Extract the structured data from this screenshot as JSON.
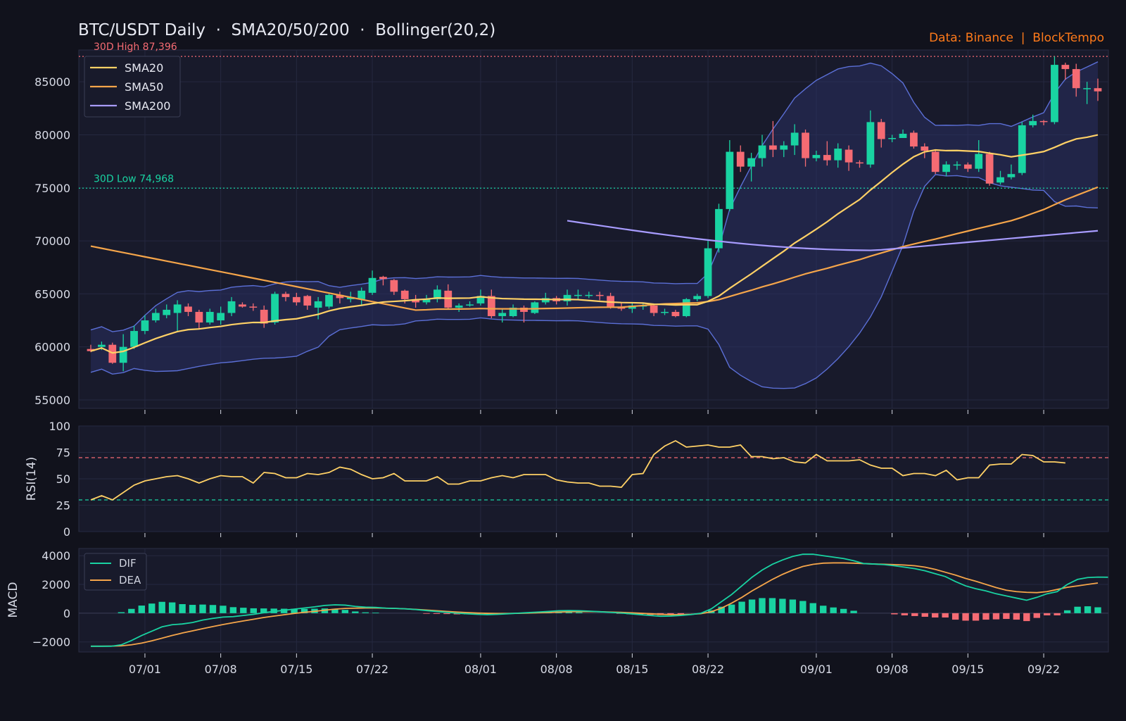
{
  "header": {
    "title": "BTC/USDT Daily  ·  SMA20/50/200  ·  Bollinger(20,2)",
    "source": "Data: Binance  |  BlockTempo"
  },
  "colors": {
    "background": "#11121c",
    "panel": "#181a2b",
    "up": "#19d3a2",
    "down": "#f56b73",
    "sma20": "#ffd166",
    "sma50": "#f5a54a",
    "sma200": "#a89cff",
    "bollinger": "#5b6fd6",
    "dif": "#19d3a2",
    "dea": "#f5a54a"
  },
  "chart_data": [
    {
      "type": "candlestick",
      "xaxis": {
        "ticks": [
          "07/01",
          "07/08",
          "07/15",
          "07/22",
          "08/01",
          "08/08",
          "08/15",
          "08/22",
          "09/01",
          "09/08",
          "09/15",
          "09/22"
        ]
      },
      "yaxis": {
        "ticks": [
          55000,
          60000,
          65000,
          70000,
          75000,
          80000,
          85000
        ],
        "ylim": [
          54200,
          88000
        ]
      },
      "legend": {
        "position": "top-left",
        "items": [
          "SMA20",
          "SMA50",
          "SMA200"
        ]
      },
      "annotations": [
        {
          "label": "30D High 87,396",
          "value": 87396,
          "color": "#f56b73"
        },
        {
          "label": "30D Low 74,968",
          "value": 74968,
          "color": "#19d3a2"
        }
      ],
      "ohlc_keypoints": [
        [
          59800,
          59600,
          60200,
          59500
        ],
        [
          60000,
          60200,
          60500,
          59700
        ],
        [
          60200,
          58500,
          60400,
          58400
        ],
        [
          58500,
          60000,
          61200,
          57700
        ],
        [
          60000,
          61500,
          62000,
          59800
        ],
        [
          61500,
          62500,
          63000,
          61200
        ],
        [
          62500,
          63200,
          63600,
          62300
        ],
        [
          63000,
          63500,
          64000,
          62700
        ],
        [
          63200,
          64000,
          64400,
          61400
        ],
        [
          63800,
          63300,
          64100,
          62900
        ],
        [
          63300,
          62300,
          63500,
          61700
        ],
        [
          62300,
          63300,
          63600,
          62100
        ],
        [
          62500,
          63200,
          63800,
          62100
        ],
        [
          63200,
          64300,
          64700,
          62900
        ],
        [
          64000,
          63800,
          64200,
          63700
        ],
        [
          63800,
          63700,
          64100,
          63400
        ],
        [
          63500,
          62200,
          63900,
          61800
        ],
        [
          62300,
          65000,
          65200,
          62100
        ],
        [
          65000,
          64700,
          65200,
          64300
        ],
        [
          64700,
          64200,
          65100,
          63900
        ],
        [
          64800,
          63900,
          64900,
          63500
        ],
        [
          63700,
          64300,
          64700,
          62600
        ],
        [
          63800,
          64900,
          65100,
          63600
        ],
        [
          64900,
          64600,
          65200,
          64100
        ],
        [
          64500,
          64700,
          65200,
          64200
        ],
        [
          64500,
          65300,
          65600,
          63900
        ],
        [
          65100,
          66500,
          67200,
          64900
        ],
        [
          66600,
          66400,
          66700,
          65800
        ],
        [
          66300,
          65200,
          66400,
          64900
        ],
        [
          65300,
          64500,
          65400,
          64100
        ],
        [
          64500,
          64200,
          64900,
          63700
        ],
        [
          64200,
          64500,
          64900,
          64000
        ],
        [
          64500,
          65400,
          65800,
          64200
        ],
        [
          65300,
          63700,
          65900,
          63500
        ],
        [
          63700,
          63900,
          64100,
          63300
        ],
        [
          64000,
          64000,
          64300,
          63800
        ],
        [
          64100,
          64800,
          65400,
          63900
        ],
        [
          64800,
          62900,
          65400,
          62700
        ],
        [
          62900,
          63200,
          63600,
          62300
        ],
        [
          62900,
          63700,
          64000,
          62800
        ],
        [
          63700,
          63300,
          63900,
          62300
        ],
        [
          63200,
          64200,
          64300,
          63100
        ],
        [
          64200,
          64600,
          65100,
          64000
        ],
        [
          64600,
          64300,
          64800,
          64000
        ],
        [
          64300,
          64900,
          65400,
          63900
        ],
        [
          64900,
          64900,
          65400,
          64500
        ],
        [
          64900,
          64900,
          65200,
          64600
        ],
        [
          64900,
          64800,
          65200,
          64400
        ],
        [
          64800,
          63800,
          65100,
          63600
        ],
        [
          63800,
          63600,
          64200,
          63400
        ],
        [
          63600,
          63900,
          64200,
          63200
        ],
        [
          63900,
          63900,
          64100,
          63500
        ],
        [
          63900,
          63200,
          64100,
          62900
        ],
        [
          63200,
          63300,
          63600,
          63000
        ],
        [
          63300,
          62900,
          63500,
          62800
        ],
        [
          62900,
          64500,
          64600,
          62800
        ],
        [
          64500,
          64800,
          65000,
          64300
        ],
        [
          64800,
          69300,
          70000,
          64600
        ],
        [
          69300,
          73000,
          73500,
          68900
        ],
        [
          73000,
          78400,
          79500,
          72800
        ],
        [
          78400,
          77000,
          79000,
          76500
        ],
        [
          77000,
          77800,
          78300,
          75600
        ],
        [
          77800,
          79000,
          80000,
          77000
        ],
        [
          79000,
          78600,
          81300,
          77900
        ],
        [
          78600,
          79000,
          79400,
          77900
        ],
        [
          79000,
          80200,
          81000,
          78100
        ],
        [
          80200,
          77800,
          80500,
          77000
        ],
        [
          77800,
          78100,
          78500,
          77500
        ],
        [
          78100,
          77600,
          79400,
          77100
        ],
        [
          77600,
          78700,
          79200,
          76900
        ],
        [
          78600,
          77400,
          79000,
          76600
        ],
        [
          77400,
          77300,
          77600,
          76900
        ],
        [
          77200,
          81200,
          82300,
          76900
        ],
        [
          81200,
          79600,
          81500,
          78800
        ],
        [
          79600,
          79700,
          80000,
          79300
        ],
        [
          79700,
          80100,
          80500,
          79700
        ],
        [
          80200,
          78900,
          80400,
          78700
        ],
        [
          78900,
          78500,
          79200,
          77800
        ],
        [
          78400,
          76500,
          78600,
          76300
        ],
        [
          76500,
          77200,
          77500,
          76100
        ],
        [
          77200,
          77200,
          77500,
          76700
        ],
        [
          77200,
          76800,
          77400,
          76500
        ],
        [
          76800,
          78200,
          79500,
          76500
        ],
        [
          78200,
          75400,
          78400,
          75200
        ],
        [
          75500,
          76000,
          76600,
          75300
        ],
        [
          76000,
          76300,
          77200,
          75800
        ],
        [
          76400,
          80900,
          81200,
          76200
        ],
        [
          80900,
          81300,
          81900,
          80700
        ],
        [
          81300,
          81200,
          81400,
          80900
        ],
        [
          81200,
          86600,
          87396,
          81000
        ],
        [
          86600,
          86200,
          86800,
          85200
        ],
        [
          86200,
          84400,
          86700,
          83600
        ],
        [
          84400,
          84400,
          85000,
          82900
        ],
        [
          84400,
          84100,
          85300,
          83200
        ]
      ],
      "sma200_range": {
        "from": 69200,
        "to": 71000
      }
    },
    {
      "type": "line",
      "ylabel": "RSI(14)",
      "yaxis": {
        "ticks": [
          0,
          25,
          50,
          75,
          100
        ],
        "ylim": [
          0,
          100
        ]
      },
      "thresholds": [
        70,
        30
      ],
      "rsi": [
        30,
        34,
        30,
        37,
        44,
        48,
        50,
        52,
        53,
        50,
        46,
        50,
        53,
        52,
        52,
        46,
        56,
        55,
        51,
        51,
        55,
        54,
        56,
        61,
        59,
        54,
        50,
        51,
        55,
        48,
        48,
        48,
        52,
        45,
        45,
        48,
        48,
        51,
        53,
        51,
        54,
        54,
        54,
        49,
        47,
        46,
        46,
        43,
        43,
        42,
        54,
        55,
        73,
        81,
        86,
        80,
        81,
        82,
        80,
        80,
        82,
        71,
        71,
        69,
        70,
        66,
        65,
        73,
        67,
        67,
        67,
        68,
        63,
        60,
        60,
        53,
        55,
        55,
        53,
        58,
        49,
        51,
        51,
        63,
        64,
        64,
        73,
        72,
        66,
        66,
        65
      ]
    },
    {
      "type": "bar+line",
      "ylabel": "MACD",
      "yaxis": {
        "ticks": [
          -2000,
          0,
          2000,
          4000
        ],
        "ylim": [
          -2700,
          4500
        ]
      },
      "legend": {
        "position": "top-left",
        "items": [
          "DIF",
          "DEA"
        ]
      },
      "dif_keypoints": [
        -2300,
        -2300,
        -2300,
        -2200,
        -1900,
        -1550,
        -1250,
        -950,
        -800,
        -750,
        -650,
        -480,
        -360,
        -270,
        -240,
        -160,
        -80,
        30,
        120,
        200,
        280,
        360,
        440,
        540,
        580,
        560,
        470,
        420,
        400,
        350,
        330,
        300,
        250,
        180,
        120,
        60,
        0,
        -40,
        -80,
        -100,
        -80,
        -40,
        0,
        40,
        80,
        120,
        170,
        180,
        170,
        140,
        100,
        60,
        20,
        -40,
        -100,
        -160,
        -210,
        -200,
        -160,
        -100,
        0,
        300,
        800,
        1300,
        1900,
        2500,
        3000,
        3400,
        3700,
        3950,
        4100,
        4100,
        4000,
        3900,
        3800,
        3650,
        3450,
        3420,
        3380,
        3300,
        3200,
        3100,
        2950,
        2750,
        2550,
        2200,
        1900,
        1700,
        1550,
        1350,
        1200,
        1050,
        900,
        1100,
        1350,
        1500,
        2000,
        2350,
        2480,
        2510,
        2500
      ],
      "dea_keypoints": [
        -2300,
        -2300,
        -2290,
        -2270,
        -2200,
        -2080,
        -1920,
        -1740,
        -1550,
        -1380,
        -1230,
        -1080,
        -930,
        -790,
        -660,
        -540,
        -420,
        -300,
        -200,
        -110,
        -20,
        60,
        130,
        210,
        280,
        330,
        350,
        360,
        360,
        350,
        330,
        300,
        260,
        220,
        170,
        120,
        80,
        40,
        10,
        -10,
        -20,
        -20,
        -10,
        10,
        30,
        50,
        80,
        100,
        110,
        110,
        100,
        80,
        60,
        30,
        0,
        -40,
        -80,
        -100,
        -100,
        -80,
        -30,
        100,
        350,
        700,
        1100,
        1550,
        1950,
        2350,
        2700,
        3000,
        3250,
        3400,
        3480,
        3500,
        3500,
        3480,
        3450,
        3420,
        3400,
        3380,
        3350,
        3300,
        3200,
        3050,
        2850,
        2650,
        2420,
        2220,
        2000,
        1780,
        1600,
        1500,
        1450,
        1430,
        1500,
        1650,
        1800,
        1900,
        2000,
        2100
      ]
    }
  ]
}
